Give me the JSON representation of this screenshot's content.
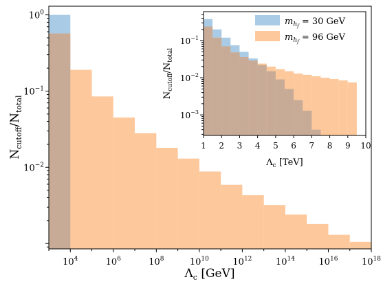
{
  "colors": {
    "series_30": "#a9cbe5",
    "series_96": "#fdc89b",
    "overlap": "#c7ab97",
    "axis": "#000000"
  },
  "chart_data": [
    {
      "type": "bar",
      "panel": "main",
      "title": "",
      "xlabel": "Λc [GeV]",
      "ylabel": "Ncutoff/Ntotal",
      "xscale": "log",
      "yscale": "log",
      "xlim": [
        1000,
        1e+18
      ],
      "ylim": [
        0.00085,
        1.3
      ],
      "x_tick_labels": [
        "10^4",
        "10^6",
        "10^8",
        "10^10",
        "10^12",
        "10^14",
        "10^16",
        "10^18"
      ],
      "y_tick_labels": [
        "10^-2",
        "10^-1",
        "10^0"
      ],
      "grid": false,
      "series": [
        {
          "name": "mhf = 30 GeV",
          "bins": [
            {
              "x0": 1000,
              "x1": 10000,
              "value": 1.0
            }
          ]
        },
        {
          "name": "mhf = 96 GeV",
          "bins": [
            {
              "x0": 1000,
              "x1": 10000,
              "value": 0.57
            },
            {
              "x0": 10000,
              "x1": 100000,
              "value": 0.19
            },
            {
              "x0": 100000,
              "x1": 1000000,
              "value": 0.085
            },
            {
              "x0": 1000000,
              "x1": 10000000,
              "value": 0.045
            },
            {
              "x0": 10000000,
              "x1": 100000000,
              "value": 0.028
            },
            {
              "x0": 100000000,
              "x1": 1000000000,
              "value": 0.018
            },
            {
              "x0": 1000000000,
              "x1": 10000000000,
              "value": 0.013
            },
            {
              "x0": 10000000000,
              "x1": 100000000000,
              "value": 0.0088
            },
            {
              "x0": 100000000000,
              "x1": 1000000000000,
              "value": 0.0059
            },
            {
              "x0": 1000000000000,
              "x1": 10000000000000,
              "value": 0.0043
            },
            {
              "x0": 10000000000000,
              "x1": 100000000000000,
              "value": 0.0032
            },
            {
              "x0": 100000000000000,
              "x1": 1000000000000000,
              "value": 0.0024
            },
            {
              "x0": 1000000000000000,
              "x1": 10000000000000000,
              "value": 0.0018
            },
            {
              "x0": 10000000000000000,
              "x1": 100000000000000000,
              "value": 0.0013
            },
            {
              "x0": 100000000000000000,
              "x1": 1000000000000000000,
              "value": 0.00105
            }
          ]
        }
      ]
    },
    {
      "type": "bar",
      "panel": "inset",
      "title": "",
      "xlabel": "Λc [TeV]",
      "ylabel": "Ncutoff/Ntotal",
      "xscale": "linear",
      "yscale": "log",
      "xlim": [
        1,
        10
      ],
      "ylim": [
        0.00028,
        0.6
      ],
      "x_tick_labels": [
        "1",
        "2",
        "3",
        "4",
        "5",
        "6",
        "7",
        "8",
        "9",
        "10"
      ],
      "y_tick_labels": [
        "10^-3",
        "10^-2",
        "10^-1"
      ],
      "legend": "top-right",
      "grid": false,
      "series": [
        {
          "name": "mhf = 30 GeV",
          "bins": [
            {
              "x0": 1.0,
              "x1": 1.5,
              "value": 0.38
            },
            {
              "x0": 1.5,
              "x1": 2.0,
              "value": 0.2
            },
            {
              "x0": 2.0,
              "x1": 2.5,
              "value": 0.12
            },
            {
              "x0": 2.5,
              "x1": 3.0,
              "value": 0.075
            },
            {
              "x0": 3.0,
              "x1": 3.5,
              "value": 0.05
            },
            {
              "x0": 3.5,
              "x1": 4.0,
              "value": 0.033
            },
            {
              "x0": 4.0,
              "x1": 4.5,
              "value": 0.022
            },
            {
              "x0": 4.5,
              "x1": 5.0,
              "value": 0.015
            },
            {
              "x0": 5.0,
              "x1": 5.5,
              "value": 0.009
            },
            {
              "x0": 5.5,
              "x1": 6.0,
              "value": 0.005
            },
            {
              "x0": 6.0,
              "x1": 6.5,
              "value": 0.0025
            },
            {
              "x0": 6.5,
              "x1": 7.0,
              "value": 0.0013
            },
            {
              "x0": 7.0,
              "x1": 7.5,
              "value": 0.0004
            }
          ]
        },
        {
          "name": "mhf = 96 GeV",
          "bins": [
            {
              "x0": 1.0,
              "x1": 1.5,
              "value": 0.24
            },
            {
              "x0": 1.5,
              "x1": 2.0,
              "value": 0.12
            },
            {
              "x0": 2.0,
              "x1": 2.5,
              "value": 0.07
            },
            {
              "x0": 2.5,
              "x1": 3.0,
              "value": 0.048
            },
            {
              "x0": 3.0,
              "x1": 3.5,
              "value": 0.036
            },
            {
              "x0": 3.5,
              "x1": 4.0,
              "value": 0.029
            },
            {
              "x0": 4.0,
              "x1": 4.5,
              "value": 0.024
            },
            {
              "x0": 4.5,
              "x1": 5.0,
              "value": 0.02
            },
            {
              "x0": 5.0,
              "x1": 5.5,
              "value": 0.017
            },
            {
              "x0": 5.5,
              "x1": 6.0,
              "value": 0.015
            },
            {
              "x0": 6.0,
              "x1": 6.5,
              "value": 0.013
            },
            {
              "x0": 6.5,
              "x1": 7.0,
              "value": 0.012
            },
            {
              "x0": 7.0,
              "x1": 7.5,
              "value": 0.011
            },
            {
              "x0": 7.5,
              "x1": 8.0,
              "value": 0.01
            },
            {
              "x0": 8.0,
              "x1": 8.5,
              "value": 0.0092
            },
            {
              "x0": 8.5,
              "x1": 9.0,
              "value": 0.0085
            },
            {
              "x0": 9.0,
              "x1": 9.5,
              "value": 0.0075
            }
          ]
        }
      ]
    }
  ],
  "labels": {
    "main_x": {
      "base": "Λ",
      "sub": "c",
      "unit": " [GeV]"
    },
    "main_y": {
      "num": "N",
      "num_sub": "cutoff",
      "slash": "/",
      "den": "N",
      "den_sub": "total"
    },
    "inset_x": {
      "base": "Λ",
      "sub": "c",
      "unit": " [TeV]"
    },
    "inset_y": {
      "num": "N",
      "num_sub": "cutoff",
      "slash": "/",
      "den": "N",
      "den_sub": "total"
    },
    "legend": [
      {
        "pre": "m",
        "sub": "h",
        "subsub": "f",
        "post": " = 30 GeV"
      },
      {
        "pre": "m",
        "sub": "h",
        "subsub": "f",
        "post": " = 96 GeV"
      }
    ]
  }
}
